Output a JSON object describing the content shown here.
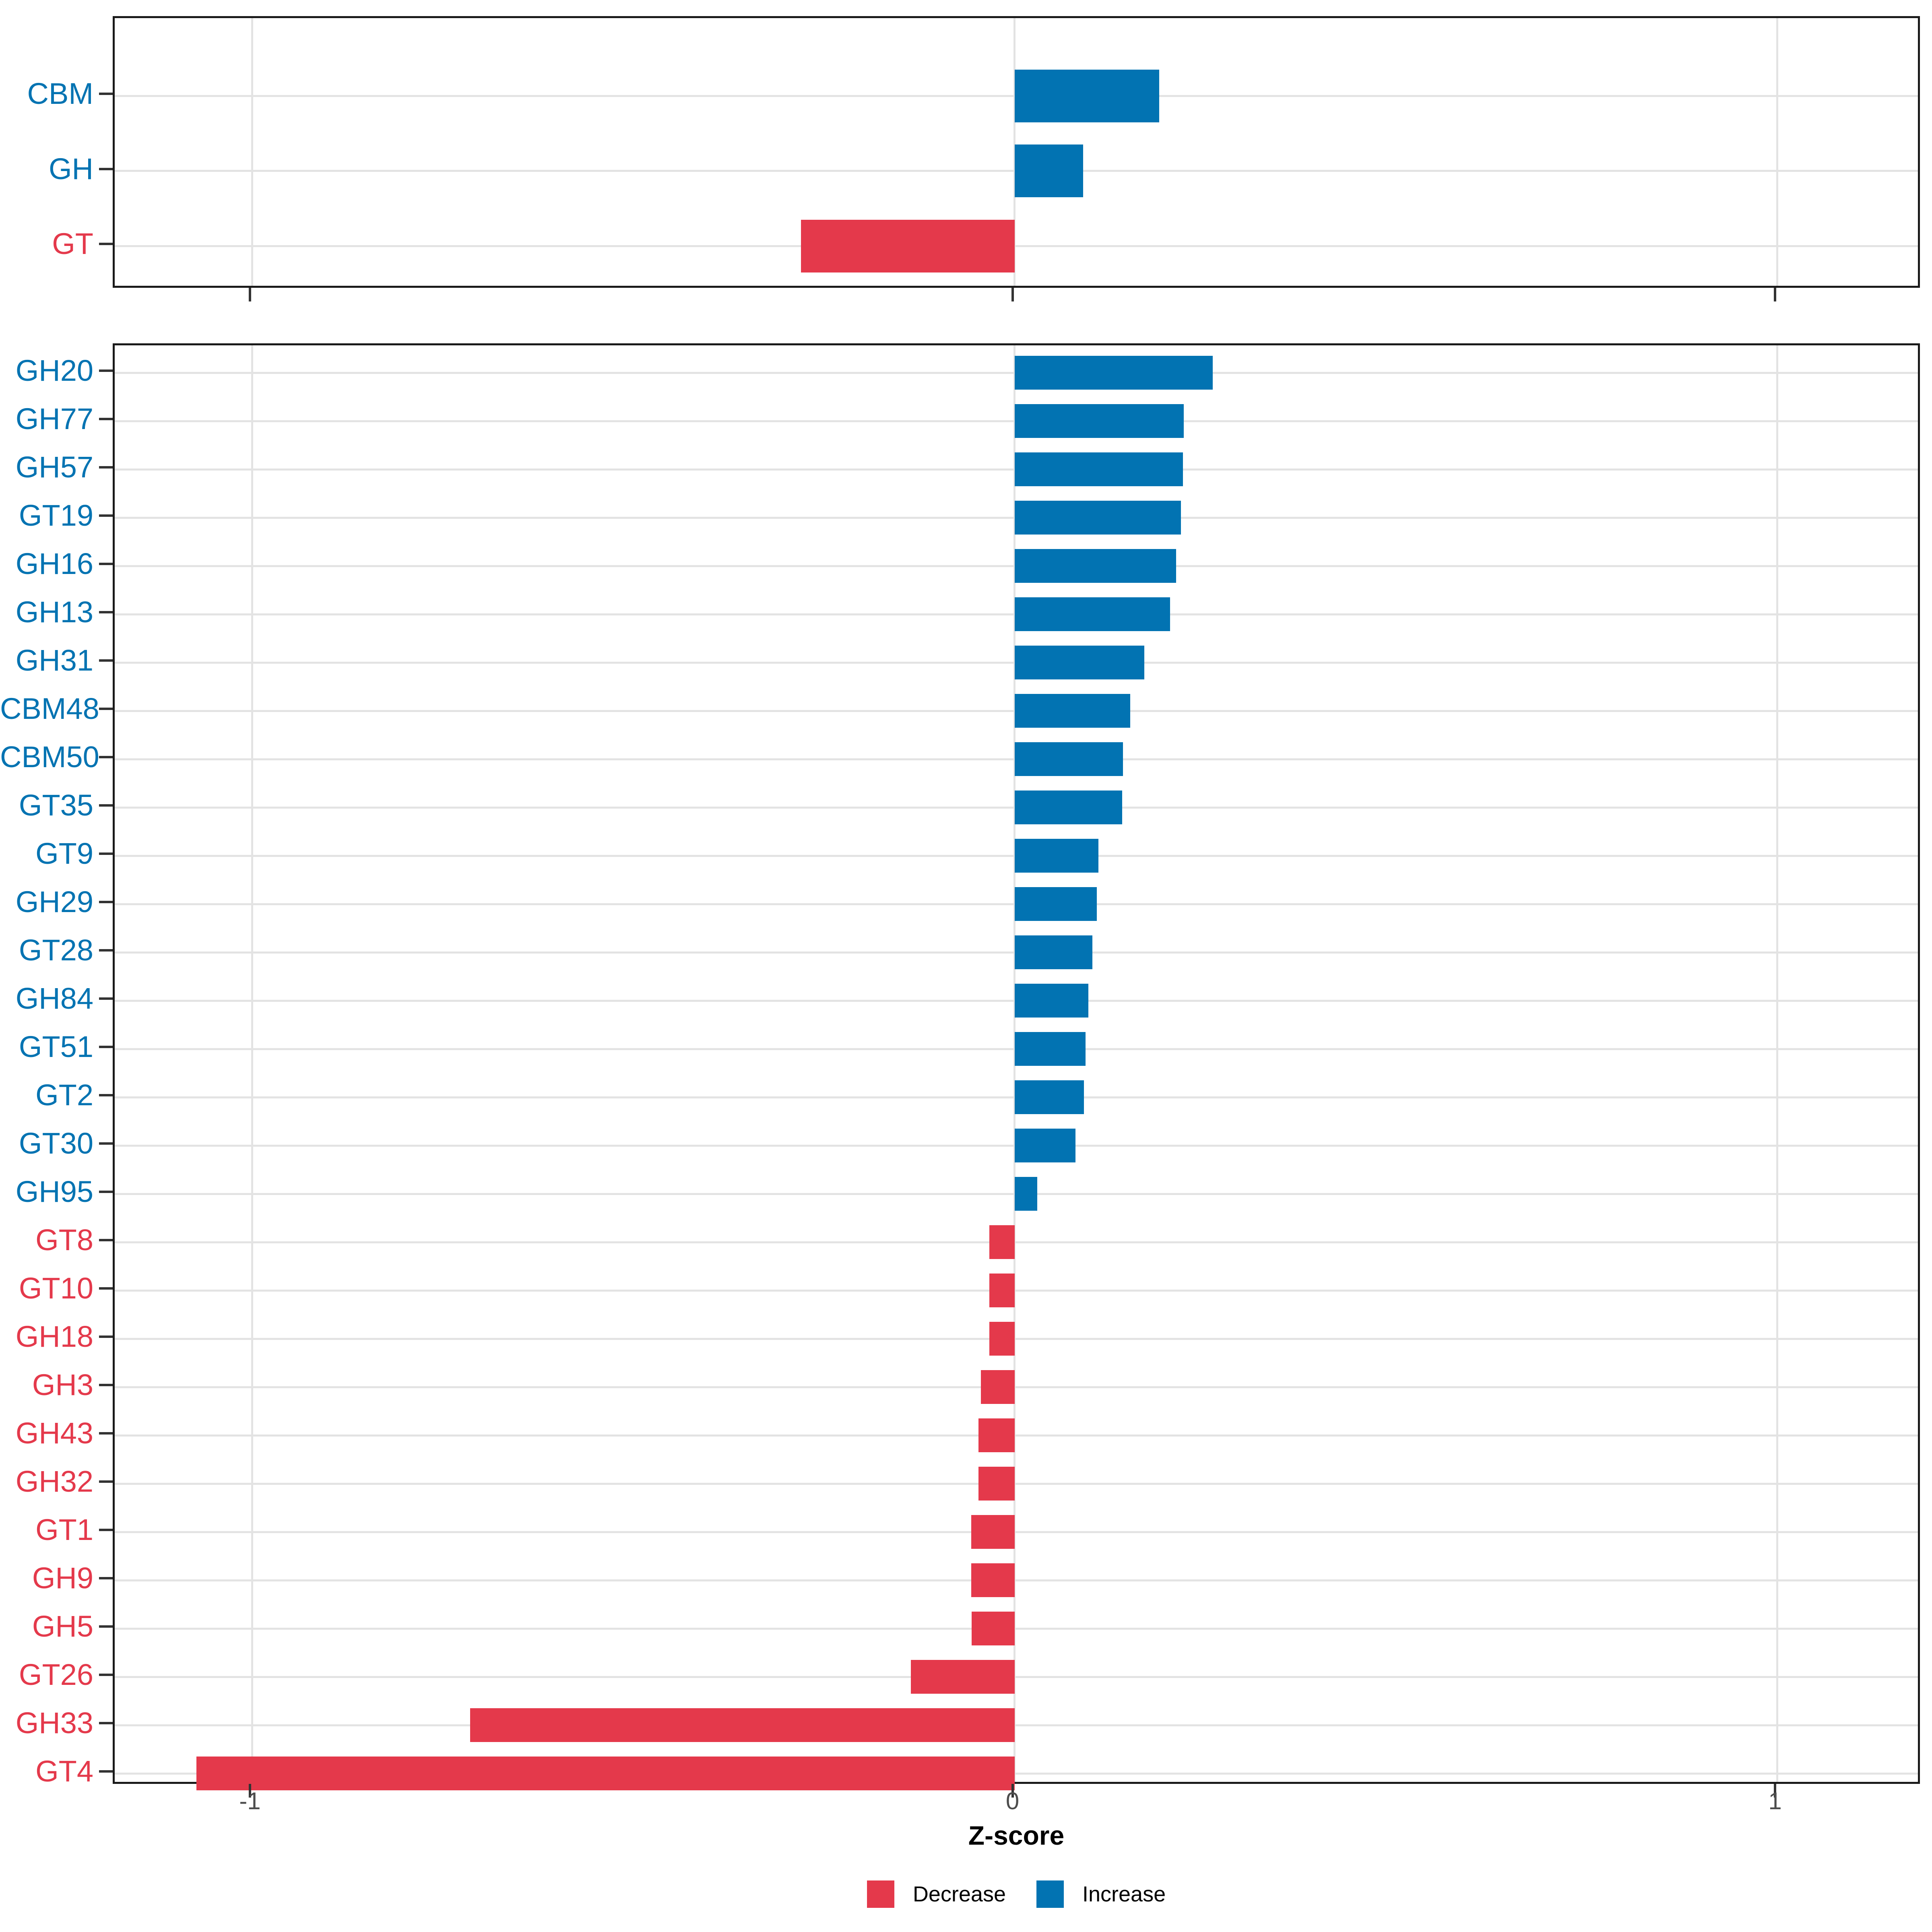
{
  "figure": {
    "xlabel": "Z-score",
    "x_domain": [
      -1.18,
      1.19
    ],
    "x_ticks": [
      {
        "value": -1,
        "label": "-1"
      },
      {
        "value": 0,
        "label": "0"
      },
      {
        "value": 1,
        "label": "1"
      }
    ],
    "colors": {
      "increase": "#0273b2",
      "decrease": "#e4394b",
      "gridline": "#e3e3e3",
      "panel_border": "#1a1a1a",
      "tick_label": "#4d4d4d"
    },
    "legend": [
      {
        "label": "Decrease",
        "key": "decrease"
      },
      {
        "label": "Increase",
        "key": "increase"
      }
    ]
  },
  "chart_data": [
    {
      "type": "bar",
      "orientation": "horizontal",
      "panel": "top",
      "title": "",
      "xlabel": "Z-score",
      "xlim": [
        -1.18,
        1.19
      ],
      "grid": "on",
      "categories": [
        "CBM",
        "GH",
        "GT"
      ],
      "values": [
        0.19,
        0.09,
        -0.28
      ],
      "directions": [
        "inc",
        "inc",
        "dec"
      ]
    },
    {
      "type": "bar",
      "orientation": "horizontal",
      "panel": "bottom",
      "title": "",
      "xlabel": "Z-score",
      "xlim": [
        -1.18,
        1.19
      ],
      "grid": "on",
      "categories": [
        "GH20",
        "GH77",
        "GH57",
        "GT19",
        "GH16",
        "GH13",
        "GH31",
        "CBM48",
        "CBM50",
        "GT35",
        "GT9",
        "GH29",
        "GT28",
        "GH84",
        "GT51",
        "GT2",
        "GT30",
        "GH95",
        "GT8",
        "GT10",
        "GH18",
        "GH3",
        "GH43",
        "GH32",
        "GT1",
        "GH9",
        "GH5",
        "GT26",
        "GH33",
        "GT4"
      ],
      "values": [
        0.26,
        0.222,
        0.221,
        0.218,
        0.212,
        0.204,
        0.17,
        0.152,
        0.142,
        0.141,
        0.11,
        0.108,
        0.102,
        0.097,
        0.093,
        0.091,
        0.08,
        0.03,
        -0.033,
        -0.033,
        -0.033,
        -0.044,
        -0.047,
        -0.047,
        -0.057,
        -0.057,
        -0.056,
        -0.136,
        -0.714,
        -1.073
      ],
      "directions": [
        "inc",
        "inc",
        "inc",
        "inc",
        "inc",
        "inc",
        "inc",
        "inc",
        "inc",
        "inc",
        "inc",
        "inc",
        "inc",
        "inc",
        "inc",
        "inc",
        "inc",
        "inc",
        "dec",
        "dec",
        "dec",
        "dec",
        "dec",
        "dec",
        "dec",
        "dec",
        "dec",
        "dec",
        "dec",
        "dec"
      ]
    }
  ]
}
